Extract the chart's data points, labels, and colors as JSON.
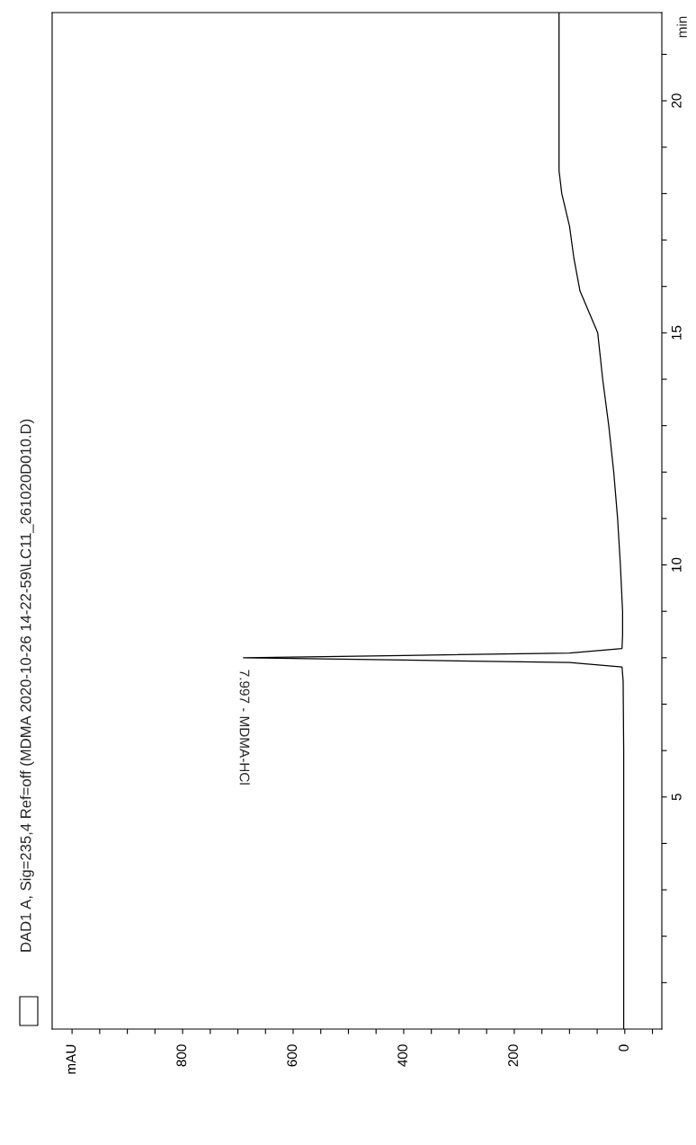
{
  "chart_data": {
    "type": "line",
    "title": "DAD1 A, Sig=235,4 Ref=off (MDMA 2020-10-26 14-22-59\\LC11_261020D010.D)",
    "ylabel": "min",
    "series": [
      {
        "color": "#000000",
        "x": [
          2,
          2,
          2,
          2,
          3,
          5,
          100,
          400,
          690,
          400,
          100,
          5,
          4,
          4,
          8,
          13,
          20,
          29,
          40,
          49,
          81,
          92,
          100,
          114,
          119,
          119,
          119,
          119,
          119
        ],
        "values": [
          0,
          2,
          4,
          6,
          7.5,
          7.8,
          7.9,
          7.95,
          8.0,
          8.05,
          8.1,
          8.2,
          8.5,
          9,
          10,
          11,
          12,
          13,
          14,
          15,
          15.9,
          16.6,
          17.3,
          18,
          18.5,
          19,
          20,
          21,
          21.9
        ]
      }
    ],
    "annotations": [
      {
        "text": "7.997 - MDMA-HCl",
        "x": 690,
        "y": 7.997
      }
    ],
    "ylim": [
      0,
      21.9
    ],
    "yticks": [
      {
        "value": 1,
        "label": null
      },
      {
        "value": 2,
        "label": null
      },
      {
        "value": 3,
        "label": null
      },
      {
        "value": 4,
        "label": null
      },
      5,
      {
        "value": 6,
        "label": null
      },
      {
        "value": 7,
        "label": null
      },
      {
        "value": 8,
        "label": null
      },
      {
        "value": 9,
        "label": null
      },
      10,
      {
        "value": 11,
        "label": null
      },
      {
        "value": 12,
        "label": null
      },
      {
        "value": 13,
        "label": null
      },
      {
        "value": 14,
        "label": null
      },
      15,
      {
        "value": 16,
        "label": null
      },
      {
        "value": 17,
        "label": null
      },
      {
        "value": 18,
        "label": null
      },
      {
        "value": 19,
        "label": null
      },
      20,
      {
        "value": 21,
        "label": null
      }
    ],
    "xlim": [
      1036,
      -67
    ],
    "xticks": [
      {
        "value": -50,
        "label": null
      },
      0,
      {
        "value": 50,
        "label": null
      },
      {
        "value": 100,
        "label": null
      },
      {
        "value": 150,
        "label": null
      },
      200,
      {
        "value": 250,
        "label": null
      },
      {
        "value": 300,
        "label": null
      },
      {
        "value": 350,
        "label": null
      },
      400,
      {
        "value": 450,
        "label": null
      },
      {
        "value": 500,
        "label": null
      },
      {
        "value": 550,
        "label": null
      },
      600,
      {
        "value": 650,
        "label": null
      },
      {
        "value": 700,
        "label": null
      },
      {
        "value": 750,
        "label": null
      },
      800,
      {
        "value": 850,
        "label": null
      },
      {
        "value": 900,
        "label": null
      },
      {
        "value": 950,
        "label": null
      },
      {
        "value": 1000,
        "label": "mAU"
      }
    ],
    "grid": false,
    "legend": false,
    "marker": "none",
    "line_style": "solid"
  }
}
